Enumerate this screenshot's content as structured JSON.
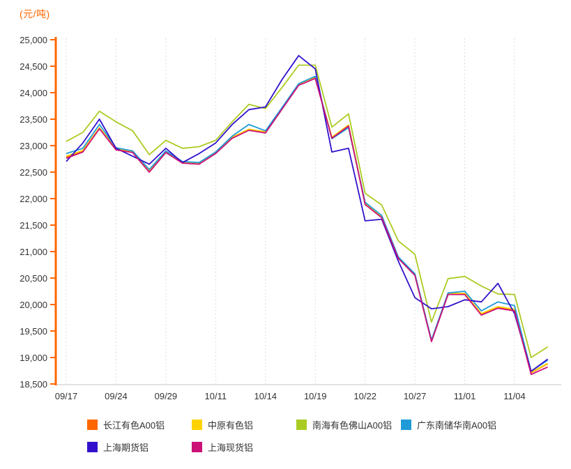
{
  "unit_label": "(元/吨)",
  "colors": {
    "y_axis": "#ff6600",
    "x_axis": "#d9d9d9",
    "grid": "#dcdcdc",
    "tick_text": "#333333",
    "unit_text": "#ff6600"
  },
  "chart_data": {
    "type": "line",
    "title": "",
    "ylabel": "(元/吨)",
    "xlabel": "",
    "grid": "vertical-dashed",
    "legend_position": "bottom",
    "y_axis": {
      "min": 18500,
      "max": 25000,
      "step": 500
    },
    "x_tick_labels": [
      "09/17",
      "09/24",
      "09/29",
      "10/11",
      "10/14",
      "10/19",
      "10/22",
      "10/27",
      "11/01",
      "11/04"
    ],
    "x_tick_indices": [
      0,
      3,
      6,
      9,
      12,
      15,
      18,
      21,
      24,
      27
    ],
    "n_points": 30,
    "series": [
      {
        "name": "长江有色A00铝",
        "color": "#ff6600",
        "values": [
          22780,
          22900,
          23330,
          22930,
          22880,
          22520,
          22880,
          22680,
          22660,
          22860,
          23150,
          23300,
          23250,
          23700,
          24150,
          24280,
          23150,
          23380,
          21900,
          21650,
          20880,
          20560,
          19310,
          20200,
          20200,
          19820,
          19950,
          19900,
          18710,
          18880
        ]
      },
      {
        "name": "中原有色铝",
        "color": "#ffd200",
        "values": [
          22800,
          22910,
          23340,
          22950,
          22890,
          22530,
          22890,
          22690,
          22670,
          22870,
          23160,
          23310,
          23260,
          23710,
          24160,
          24290,
          23160,
          23390,
          21910,
          21660,
          20890,
          20570,
          19320,
          20210,
          20210,
          19830,
          19960,
          19910,
          18720,
          18890
        ]
      },
      {
        "name": "南海有色佛山A00铝",
        "color": "#aacc22",
        "values": [
          23080,
          23250,
          23650,
          23450,
          23280,
          22830,
          23100,
          22950,
          22980,
          23100,
          23450,
          23780,
          23700,
          24100,
          24520,
          24520,
          23350,
          23600,
          22100,
          21880,
          21200,
          20950,
          19670,
          20490,
          20530,
          20350,
          20200,
          20190,
          19000,
          19200
        ]
      },
      {
        "name": "广东南储华南A00铝",
        "color": "#1f9ad7",
        "values": [
          22850,
          22950,
          23400,
          22960,
          22900,
          22550,
          22900,
          22700,
          22680,
          22880,
          23180,
          23400,
          23280,
          23720,
          24170,
          24310,
          23130,
          23340,
          21930,
          21680,
          20900,
          20580,
          19330,
          20220,
          20250,
          19880,
          20050,
          19980,
          18740,
          18950
        ]
      },
      {
        "name": "上海期货铝",
        "color": "#3311cc",
        "values": [
          22700,
          23050,
          23500,
          22950,
          22800,
          22650,
          22950,
          22680,
          22850,
          23050,
          23400,
          23680,
          23730,
          24250,
          24700,
          24450,
          22880,
          22950,
          21580,
          21610,
          20820,
          20130,
          19920,
          19960,
          20090,
          20050,
          20400,
          19830,
          18740,
          18970
        ]
      },
      {
        "name": "上海现货铝",
        "color": "#cc1177",
        "values": [
          22760,
          22880,
          23320,
          22920,
          22870,
          22500,
          22870,
          22670,
          22650,
          22850,
          23140,
          23290,
          23240,
          23690,
          24140,
          24270,
          23140,
          23370,
          21890,
          21640,
          20870,
          20550,
          19300,
          20190,
          20190,
          19800,
          19930,
          19880,
          18680,
          18820
        ]
      }
    ]
  }
}
